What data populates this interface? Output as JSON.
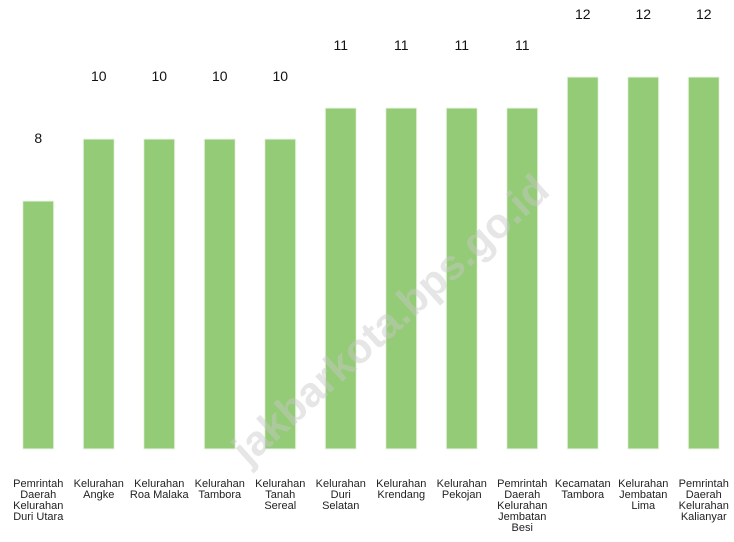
{
  "watermark": "jakbarkota.bps.go.id",
  "chart_data": {
    "type": "bar",
    "title": "",
    "xlabel": "",
    "ylabel": "",
    "ylim": [
      0,
      12
    ],
    "grid": false,
    "legend": "none",
    "bar_color": "#93cb76",
    "bar_edge_color": "#eef6e8",
    "categories": [
      [
        "Pemrintah",
        "Daerah",
        "Kelurahan",
        "Duri Utara"
      ],
      [
        "Kelurahan",
        "Angke"
      ],
      [
        "Kelurahan",
        "Roa Malaka"
      ],
      [
        "Kelurahan",
        "Tambora"
      ],
      [
        "Kelurahan",
        "Tanah",
        "Sereal"
      ],
      [
        "Kelurahan",
        "Duri",
        "Selatan"
      ],
      [
        "Kelurahan",
        "Krendang"
      ],
      [
        "Kelurahan",
        "Pekojan"
      ],
      [
        "Pemrintah",
        "Daerah",
        "Kelurahan",
        "Jembatan",
        "Besi"
      ],
      [
        "Kecamatan",
        "Tambora"
      ],
      [
        "Kelurahan",
        "Jembatan",
        "Lima"
      ],
      [
        "Pemrintah",
        "Daerah",
        "Kelurahan",
        "Kalianyar"
      ]
    ],
    "values": [
      8,
      10,
      10,
      10,
      10,
      11,
      11,
      11,
      11,
      12,
      12,
      12
    ]
  }
}
